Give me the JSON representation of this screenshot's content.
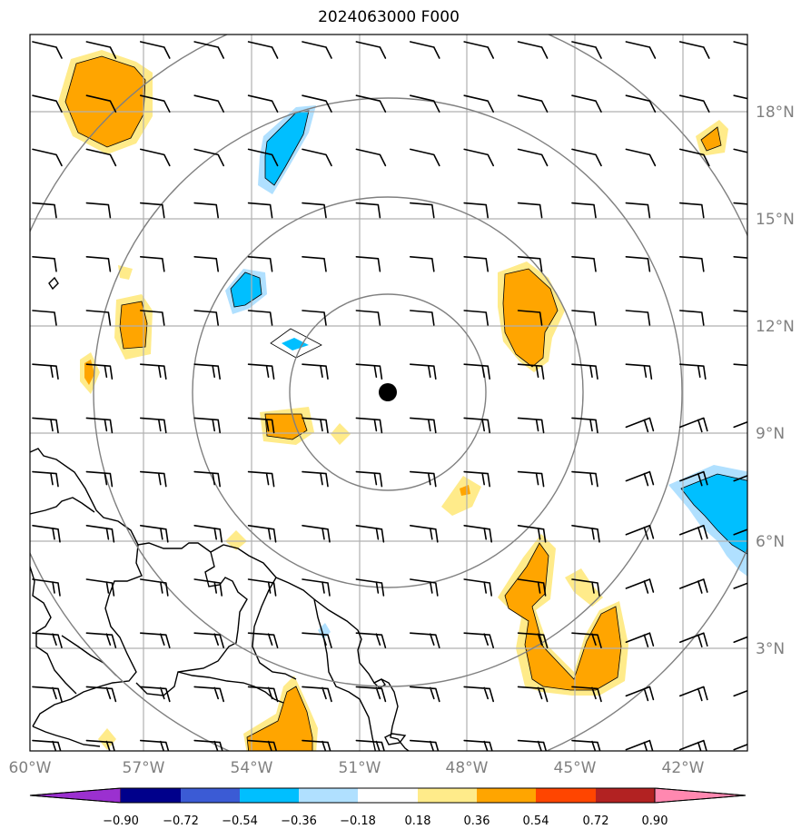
{
  "title": "2024063000 F000",
  "lon_labels": [
    "60°W",
    "57°W",
    "54°W",
    "51°W",
    "48°W",
    "45°W",
    "42°W"
  ],
  "lat_labels": [
    "18°N",
    "15°N",
    "12°N",
    "9°N",
    "6°N",
    "3°N"
  ],
  "colorbar": {
    "tick_labels": [
      "−0.90",
      "−0.72",
      "−0.54",
      "−0.36",
      "−0.18",
      "0.18",
      "0.36",
      "0.54",
      "0.72",
      "0.90"
    ],
    "colors": [
      "#9b30d0",
      "#00008b",
      "#3b5bd5",
      "#00bfff",
      "#b0e0ff",
      "#ffffff",
      "#ffeb8a",
      "#ffa500",
      "#ff4500",
      "#b22222",
      "#ff88b0"
    ]
  },
  "map": {
    "extent": {
      "lon": [
        -60.2,
        -40.1
      ],
      "lat": [
        0.5,
        20.5
      ]
    },
    "center": {
      "lon": -49.5,
      "lat": 10.1
    },
    "range_rings": 4,
    "colors": {
      "grid": "#b0b0b0",
      "ring": "#808080",
      "coast": "#000000",
      "center_marker": "#000000",
      "barbs": "#000000"
    }
  }
}
